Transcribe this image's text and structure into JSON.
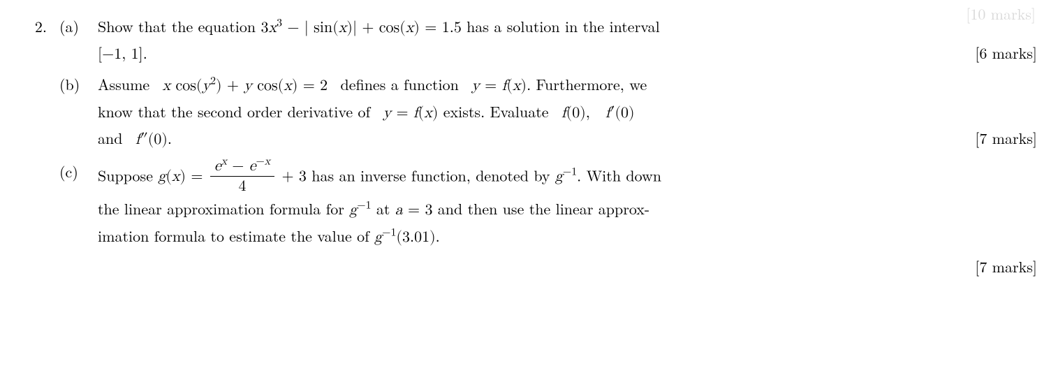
{
  "top_partial": "[10 marks]",
  "problem_number": "2.",
  "parts": {
    "a": {
      "label": "(a)",
      "line1_pre": "Show that the equation ",
      "eq": "3x³ − | sin(x)| + cos(x) = 1.5",
      "line1_post": " has a solution in the interval",
      "line2_interval": "[−1, 1].",
      "marks": "[6 marks]"
    },
    "b": {
      "label": "(b)",
      "line1_pre": "Assume ",
      "eq1": "x cos(y²) + y cos(x) = 2",
      "line1_mid": " defines a function ",
      "eq2": "y = f(x)",
      "line1_post": ". Furthermore, we",
      "line2_pre": "know that the second order derivative of ",
      "eq3": "y = f(x)",
      "line2_mid": " exists. Evaluate ",
      "f0": "f(0)",
      "fp0": "f′(0)",
      "line3_pre": "and ",
      "fpp0": "f″(0)",
      "marks": "[7 marks]"
    },
    "c": {
      "label": "(c)",
      "line1_pre": "Suppose ",
      "g_eq_lhs": "g(x) = ",
      "frac_num": "eˣ − e⁻ˣ",
      "frac_den": "4",
      "g_eq_rhs": " + 3",
      "line1_mid": " has an inverse function, denoted by ",
      "ginv": "g⁻¹",
      "line1_post": ". With down",
      "line2_pre": "the linear approximation formula for ",
      "ginv2": "g⁻¹",
      "line2_mid": " at ",
      "a_eq": "a = 3",
      "line2_post": " and then use the linear approx-",
      "line3_pre": "imation formula to estimate the value of ",
      "ginv_val": "g⁻¹(3.01)",
      "marks": "[7 marks]"
    }
  }
}
